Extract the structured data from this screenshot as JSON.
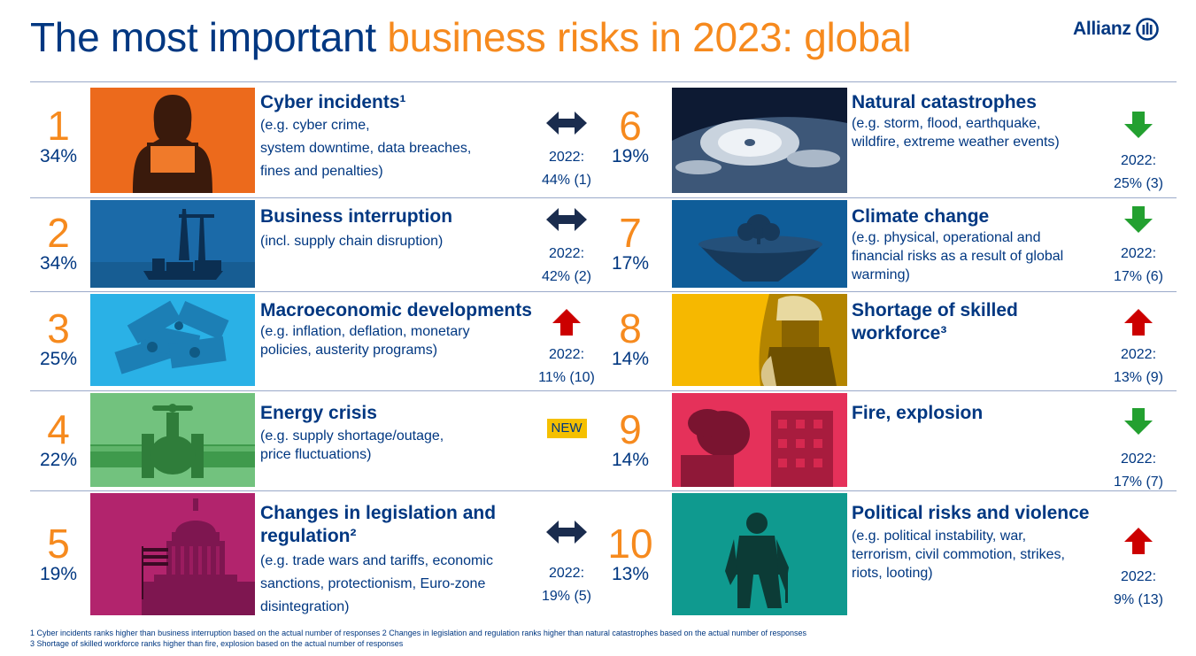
{
  "header": {
    "title_part1": "The most important",
    "title_part2": "business risks in 2023: global",
    "logo_text": "Allianz"
  },
  "colors": {
    "brand_blue": "#003781",
    "accent_orange": "#f68a1e",
    "up_red": "#cc0000",
    "down_green": "#23a030",
    "new_yellow": "#f5c000"
  },
  "risks_left": [
    {
      "rank": "1",
      "percent": "34%",
      "title": "Cyber incidents¹",
      "desc": [
        "(e.g. cyber crime,",
        "system downtime, data breaches,",
        "fines and penalties)"
      ],
      "trend_icon": "left-right-arrow-icon",
      "prev_label": "2022:",
      "prev_value": "44% (1)",
      "image": "hooded-hacker-laptop"
    },
    {
      "rank": "2",
      "percent": "34%",
      "title": "Business interruption",
      "desc": [
        "(incl. supply chain disruption)"
      ],
      "trend_icon": "left-right-arrow-icon",
      "prev_label": "2022:",
      "prev_value": "42% (2)",
      "image": "container-port-cranes"
    },
    {
      "rank": "3",
      "percent": "25%",
      "title": "Macroeconomic developments",
      "desc": [
        "(e.g. inflation, deflation, monetary",
        "policies, austerity programs)"
      ],
      "trend_icon": "up-arrow-icon",
      "prev_label": "2022:",
      "prev_value": "11% (10)",
      "image": "dollar-banknotes"
    },
    {
      "rank": "4",
      "percent": "22%",
      "title": "Energy crisis",
      "desc": [
        "(e.g. supply shortage/outage,",
        "price fluctuations)"
      ],
      "trend_icon": "new-badge",
      "new_label": "NEW",
      "image": "pipeline-valve"
    },
    {
      "rank": "5",
      "percent": "19%",
      "title": "Changes in legislation and regulation²",
      "desc": [
        "(e.g. trade wars and tariffs, economic",
        "sanctions, protectionism, Euro-zone",
        "disintegration)"
      ],
      "trend_icon": "left-right-arrow-icon",
      "prev_label": "2022:",
      "prev_value": "19% (5)",
      "image": "capitol-dome-flag"
    }
  ],
  "risks_right": [
    {
      "rank": "6",
      "percent": "19%",
      "title": "Natural catastrophes",
      "desc": [
        "(e.g. storm, flood, earthquake,",
        "wildfire, extreme weather events)"
      ],
      "trend_icon": "down-arrow-icon",
      "prev_label": "2022:",
      "prev_value": "25% (3)",
      "image": "hurricane-from-space"
    },
    {
      "rank": "7",
      "percent": "17%",
      "title": "Climate change",
      "desc": [
        "(e.g. physical, operational and",
        "financial risks as a result of global",
        "warming)"
      ],
      "trend_icon": "down-arrow-icon",
      "prev_label": "2022:",
      "prev_value": "17% (6)",
      "image": "floating-island-tree"
    },
    {
      "rank": "8",
      "percent": "14%",
      "title": "Shortage of skilled workforce³",
      "desc": [],
      "trend_icon": "up-arrow-icon",
      "prev_label": "2022:",
      "prev_value": "13% (9)",
      "image": "worker-with-helmet"
    },
    {
      "rank": "9",
      "percent": "14%",
      "title": "Fire, explosion",
      "desc": [],
      "trend_icon": "down-arrow-icon",
      "prev_label": "2022:",
      "prev_value": "17% (7)",
      "image": "burning-building"
    },
    {
      "rank": "10",
      "percent": "13%",
      "title": "Political risks and violence",
      "desc": [
        "(e.g. political instability, war,",
        "terrorism, civil commotion, strikes,",
        "riots, looting)"
      ],
      "trend_icon": "up-arrow-icon",
      "prev_label": "2022:",
      "prev_value": "9% (13)",
      "image": "soldier-silhouette"
    }
  ],
  "footnotes": [
    "1 Cyber incidents ranks higher than business interruption based on the actual number of responses  2 Changes in legislation and regulation ranks higher than natural catastrophes based on the actual number of responses",
    "3 Shortage of skilled workforce ranks higher than fire, explosion based on the actual number of responses"
  ]
}
